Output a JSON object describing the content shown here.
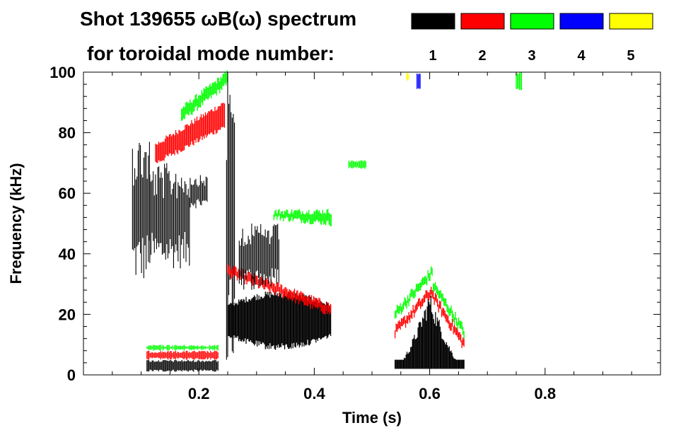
{
  "chart_data": {
    "type": "heatmap",
    "title_line1": "Shot 139655 ωB(ω) spectrum",
    "title_line2": "for toroidal mode number:",
    "xlabel": "Time (s)",
    "ylabel": "Frequency (kHz)",
    "xlim": [
      0.0,
      1.0
    ],
    "ylim": [
      0,
      100
    ],
    "x_ticks": [
      0.2,
      0.4,
      0.6,
      0.8
    ],
    "x_tick_labels": [
      "0.2",
      "0.4",
      "0.6",
      "0.8"
    ],
    "y_ticks": [
      0,
      20,
      40,
      60,
      80,
      100
    ],
    "y_tick_labels": [
      "0",
      "20",
      "40",
      "60",
      "80",
      "100"
    ],
    "legend": [
      {
        "label": "1",
        "color": "#000000"
      },
      {
        "label": "2",
        "color": "#ff0000"
      },
      {
        "label": "3",
        "color": "#00ff00"
      },
      {
        "label": "4",
        "color": "#0000ff"
      },
      {
        "label": "5",
        "color": "#ffff00"
      }
    ],
    "regions": [
      {
        "mode": "1",
        "t": [
          0.085,
          0.115
        ],
        "f": [
          30,
          80
        ],
        "kind": "streaks"
      },
      {
        "mode": "1",
        "t": [
          0.115,
          0.185
        ],
        "f": [
          35,
          70
        ],
        "kind": "streaks"
      },
      {
        "mode": "1",
        "t": [
          0.185,
          0.215
        ],
        "f": [
          55,
          66
        ],
        "kind": "streaks"
      },
      {
        "mode": "2",
        "t": [
          0.125,
          0.245
        ],
        "f_start": [
          70,
          76
        ],
        "f_end": [
          82,
          90
        ],
        "kind": "band"
      },
      {
        "mode": "3",
        "t": [
          0.17,
          0.25
        ],
        "f_start": [
          84,
          88
        ],
        "f_end": [
          96,
          100
        ],
        "kind": "band"
      },
      {
        "mode": "1",
        "t": [
          0.11,
          0.235
        ],
        "f": [
          1,
          5
        ],
        "kind": "fill"
      },
      {
        "mode": "2",
        "t": [
          0.11,
          0.235
        ],
        "f": [
          5,
          8
        ],
        "kind": "fill"
      },
      {
        "mode": "3",
        "t": [
          0.11,
          0.235
        ],
        "f": [
          8,
          10
        ],
        "kind": "fill"
      },
      {
        "mode": "1",
        "t": [
          0.248,
          0.262
        ],
        "f": [
          0,
          100
        ],
        "kind": "streaks"
      },
      {
        "mode": "1",
        "t": [
          0.25,
          0.43
        ],
        "f": [
          8,
          28
        ],
        "kind": "blob"
      },
      {
        "mode": "2",
        "t": [
          0.25,
          0.43
        ],
        "f_start": [
          33,
          36
        ],
        "f_end": [
          20,
          23
        ],
        "kind": "band"
      },
      {
        "mode": "1",
        "t": [
          0.27,
          0.34
        ],
        "f": [
          28,
          50
        ],
        "kind": "streaks"
      },
      {
        "mode": "3",
        "t": [
          0.33,
          0.43
        ],
        "f_start": [
          52,
          54
        ],
        "f_end": [
          50,
          54
        ],
        "kind": "band"
      },
      {
        "mode": "3",
        "t": [
          0.46,
          0.49
        ],
        "f": [
          68,
          71
        ],
        "kind": "fill"
      },
      {
        "mode": "1",
        "t": [
          0.54,
          0.66
        ],
        "f": [
          2,
          28
        ],
        "kind": "peak"
      },
      {
        "mode": "2",
        "t": [
          0.54,
          0.66
        ],
        "f_start": [
          14,
          28
        ],
        "f_end": [
          26,
          10
        ],
        "kind": "chevron"
      },
      {
        "mode": "3",
        "t": [
          0.54,
          0.66
        ],
        "f_start": [
          20,
          34
        ],
        "f_end": [
          30,
          14
        ],
        "kind": "chevron"
      },
      {
        "mode": "4",
        "t": [
          0.578,
          0.585
        ],
        "f": [
          94,
          100
        ],
        "kind": "fill"
      },
      {
        "mode": "5",
        "t": [
          0.56,
          0.565
        ],
        "f": [
          97,
          100
        ],
        "kind": "fill"
      },
      {
        "mode": "3",
        "t": [
          0.75,
          0.76
        ],
        "f": [
          94,
          100
        ],
        "kind": "fill"
      }
    ]
  }
}
